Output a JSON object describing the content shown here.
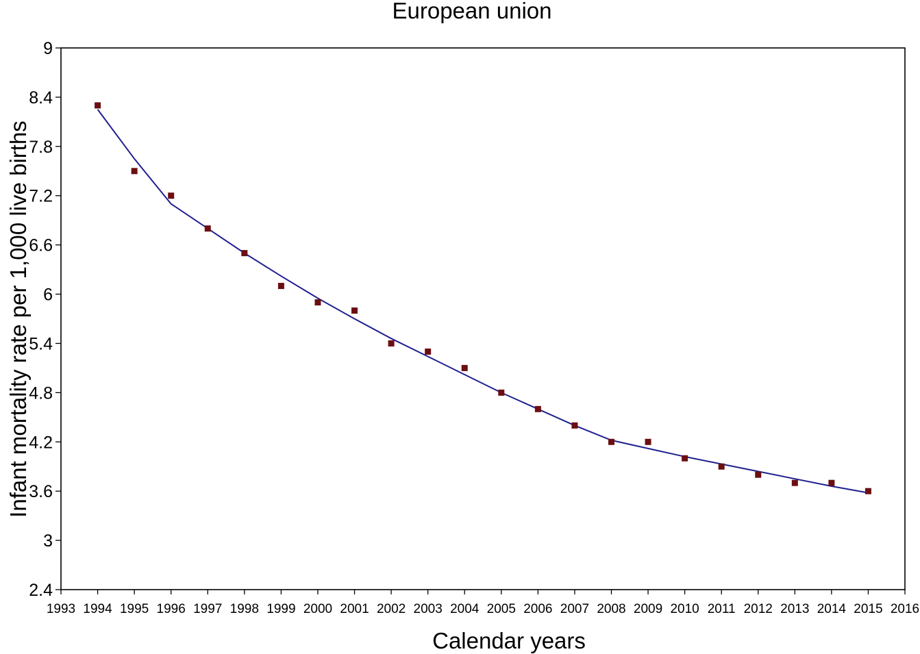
{
  "chart_data": {
    "type": "scatter",
    "title": "European union",
    "xlabel": "Calendar years",
    "ylabel": "Infant mortality rate per 1,000 live births",
    "xlim": [
      1993,
      2016
    ],
    "ylim": [
      2.4,
      9
    ],
    "x_ticks": [
      "1993",
      "1994",
      "1995",
      "1996",
      "1997",
      "1998",
      "1999",
      "2000",
      "2001",
      "2002",
      "2003",
      "2004",
      "2005",
      "2006",
      "2007",
      "2008",
      "2009",
      "2010",
      "2011",
      "2012",
      "2013",
      "2014",
      "2015",
      "2016"
    ],
    "y_ticks": [
      "2.4",
      "3",
      "3.6",
      "4.2",
      "4.8",
      "5.4",
      "6",
      "6.6",
      "7.2",
      "7.8",
      "8.4",
      "9"
    ],
    "grid": false,
    "series": [
      {
        "kind": "points",
        "color": "#6b0f12",
        "x": [
          1994,
          1995,
          1996,
          1997,
          1998,
          1999,
          2000,
          2001,
          2002,
          2003,
          2004,
          2005,
          2006,
          2007,
          2008,
          2009,
          2010,
          2011,
          2012,
          2013,
          2014,
          2015
        ],
        "y": [
          8.3,
          7.5,
          7.2,
          6.8,
          6.5,
          6.1,
          5.9,
          5.8,
          5.4,
          5.3,
          5.1,
          4.8,
          4.6,
          4.4,
          4.2,
          4.2,
          4.0,
          3.9,
          3.8,
          3.7,
          3.7,
          3.6
        ]
      },
      {
        "kind": "line",
        "color": "#1f1f8f",
        "x": [
          1994,
          1995,
          1996,
          1997,
          1998,
          1999,
          2000,
          2001,
          2002,
          2003,
          2004,
          2005,
          2006,
          2007,
          2008,
          2009,
          2010,
          2011,
          2012,
          2013,
          2014,
          2015
        ],
        "y": [
          8.25,
          7.65,
          7.1,
          6.8,
          6.5,
          6.22,
          5.95,
          5.7,
          5.46,
          5.24,
          5.02,
          4.8,
          4.6,
          4.4,
          4.22,
          4.12,
          4.02,
          3.93,
          3.84,
          3.75,
          3.66,
          3.58
        ]
      }
    ]
  }
}
